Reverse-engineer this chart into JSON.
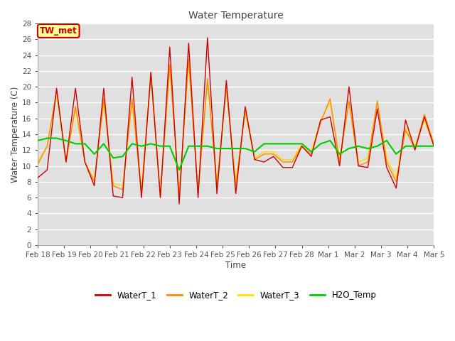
{
  "title": "Water Temperature",
  "xlabel": "Time",
  "ylabel": "Water Temperature (C)",
  "ylim": [
    0,
    28
  ],
  "yticks": [
    0,
    2,
    4,
    6,
    8,
    10,
    12,
    14,
    16,
    18,
    20,
    22,
    24,
    26,
    28
  ],
  "x_labels": [
    "Feb 18",
    "Feb 19",
    "Feb 20",
    "Feb 21",
    "Feb 22",
    "Feb 23",
    "Feb 24",
    "Feb 25",
    "Feb 26",
    "Feb 27",
    "Feb 28",
    "Mar 1",
    "Mar 2",
    "Mar 3",
    "Mar 4",
    "Mar 5"
  ],
  "annotation": "TW_met",
  "annotation_color": "#cc0000",
  "annotation_bg": "#ffff99",
  "annotation_border": "#cc0000",
  "bg_color": "#e0e0e0",
  "grid_color": "#ffffff",
  "line_colors": {
    "WaterT_1": "#cc0000",
    "WaterT_2": "#ff8800",
    "WaterT_3": "#ffdd00",
    "H2O_Temp": "#00cc00"
  },
  "WaterT_1": [
    8.5,
    9.5,
    19.8,
    10.5,
    19.8,
    10.5,
    7.5,
    19.8,
    6.2,
    6.0,
    21.2,
    6.0,
    21.8,
    6.0,
    25.0,
    5.2,
    25.5,
    6.0,
    26.2,
    6.5,
    20.8,
    6.5,
    17.5,
    10.8,
    10.5,
    11.2,
    9.8,
    9.8,
    12.5,
    11.2,
    15.8,
    16.2,
    10.0,
    20.0,
    10.0,
    9.8,
    17.2,
    9.8,
    7.2,
    15.8,
    12.0,
    16.2,
    12.5
  ],
  "WaterT_2": [
    10.2,
    12.5,
    19.5,
    10.5,
    17.5,
    10.5,
    8.0,
    18.5,
    7.5,
    7.0,
    18.5,
    6.5,
    21.8,
    6.2,
    22.8,
    6.2,
    23.5,
    6.5,
    21.0,
    7.5,
    20.0,
    7.5,
    17.2,
    10.8,
    11.5,
    11.5,
    10.5,
    10.5,
    12.5,
    11.5,
    15.5,
    18.5,
    10.5,
    18.2,
    10.0,
    10.5,
    18.2,
    10.5,
    8.0,
    14.5,
    12.2,
    16.5,
    12.8
  ],
  "WaterT_3": [
    10.5,
    12.5,
    19.2,
    10.5,
    17.2,
    10.5,
    8.2,
    18.0,
    7.8,
    7.5,
    18.0,
    7.0,
    21.5,
    6.5,
    22.5,
    6.5,
    23.0,
    7.0,
    20.5,
    8.0,
    19.8,
    8.0,
    16.8,
    11.0,
    11.8,
    11.8,
    10.8,
    10.8,
    12.8,
    11.8,
    15.8,
    18.0,
    11.0,
    18.0,
    10.5,
    11.0,
    18.0,
    11.0,
    8.5,
    14.8,
    12.5,
    15.8,
    12.5
  ],
  "H2O_Temp": [
    13.2,
    13.5,
    13.5,
    13.2,
    12.8,
    12.8,
    11.5,
    12.8,
    11.0,
    11.2,
    12.8,
    12.5,
    12.8,
    12.5,
    12.5,
    9.5,
    12.5,
    12.5,
    12.5,
    12.2,
    12.2,
    12.2,
    12.2,
    11.8,
    12.8,
    12.8,
    12.8,
    12.8,
    12.8,
    11.8,
    12.8,
    13.2,
    11.5,
    12.2,
    12.5,
    12.2,
    12.5,
    13.2,
    11.5,
    12.5,
    12.5,
    12.5,
    12.5
  ]
}
